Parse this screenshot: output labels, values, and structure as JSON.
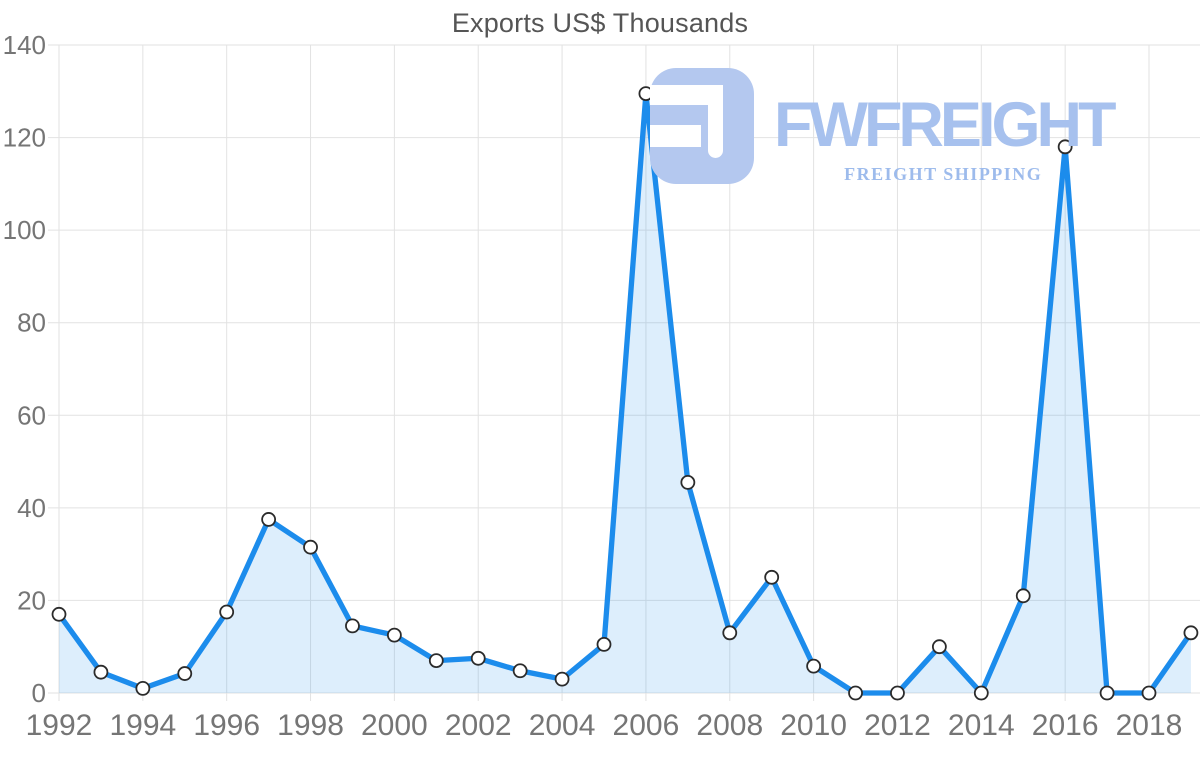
{
  "chart_data": {
    "type": "area",
    "title": "Exports US$ Thousands",
    "series_name": "Exports",
    "x": [
      1992,
      1993,
      1994,
      1995,
      1996,
      1997,
      1998,
      1999,
      2000,
      2001,
      2002,
      2003,
      2004,
      2005,
      2006,
      2007,
      2008,
      2009,
      2010,
      2011,
      2012,
      2013,
      2014,
      2015,
      2016,
      2017,
      2018,
      2019
    ],
    "values": [
      17,
      4.5,
      1,
      4.2,
      17.5,
      37.5,
      31.5,
      14.5,
      12.5,
      7,
      7.5,
      4.8,
      3,
      10.5,
      129.5,
      45.5,
      13,
      25,
      5.8,
      0,
      0,
      10,
      0,
      21,
      118,
      0,
      0,
      13
    ],
    "xlabel": "",
    "ylabel": "",
    "ylim": [
      0,
      140
    ],
    "y_ticks": [
      0,
      20,
      40,
      60,
      80,
      100,
      120,
      140
    ],
    "x_ticks": [
      1992,
      1994,
      1996,
      1998,
      2000,
      2002,
      2004,
      2006,
      2008,
      2010,
      2012,
      2014,
      2016,
      2018
    ],
    "grid": true,
    "legend": "none",
    "marker": "circle-white",
    "colors": {
      "line": "#1c8cec",
      "fill": "rgba(28,140,236,0.15)",
      "marker_fill": "#ffffff",
      "marker_stroke": "#2b2b2b",
      "grid": "#e2e2e2",
      "tick_label": "#757575",
      "title": "#555555"
    }
  },
  "watermark": {
    "brand": "FWFREIGHT",
    "tagline": "FREIGHT SHIPPING",
    "icon": "fwfreight-f-logo",
    "colors": {
      "icon": "#b4c8ef",
      "brand": "#a7c1ee",
      "tagline": "#9dbbec"
    }
  }
}
